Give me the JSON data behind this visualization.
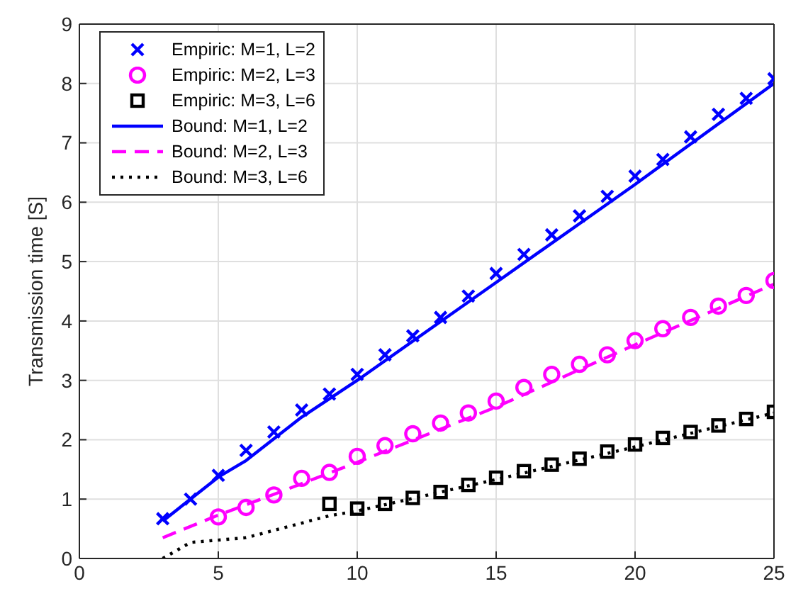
{
  "chart_data": {
    "type": "line",
    "ylabel": "Transmission time [S]",
    "xlim": [
      0,
      25
    ],
    "xticks": [
      0,
      5,
      10,
      15,
      20,
      25
    ],
    "ylim": [
      0,
      9
    ],
    "yticks": [
      0,
      1,
      2,
      3,
      4,
      5,
      6,
      7,
      8,
      9
    ],
    "grid": true,
    "legend": "top left",
    "series": [
      {
        "name": "Empiric: M=1, L=2",
        "type": "scatter",
        "marker": "cross",
        "color": "#0000ff",
        "x": [
          3,
          4,
          5,
          6,
          7,
          8,
          9,
          10,
          11,
          12,
          13,
          14,
          15,
          16,
          17,
          18,
          19,
          20,
          21,
          22,
          23,
          24,
          25
        ],
        "values": [
          0.67,
          1.0,
          1.4,
          1.82,
          2.13,
          2.5,
          2.77,
          3.1,
          3.43,
          3.75,
          4.06,
          4.42,
          4.8,
          5.12,
          5.45,
          5.77,
          6.1,
          6.44,
          6.72,
          7.1,
          7.48,
          7.75,
          8.08
        ]
      },
      {
        "name": "Empiric: M=2, L=3",
        "type": "scatter",
        "marker": "circle",
        "color": "#ff00ff",
        "x": [
          5,
          6,
          7,
          8,
          9,
          10,
          11,
          12,
          13,
          14,
          15,
          16,
          17,
          18,
          19,
          20,
          21,
          22,
          23,
          24,
          25
        ],
        "values": [
          0.7,
          0.86,
          1.07,
          1.35,
          1.45,
          1.72,
          1.9,
          2.1,
          2.28,
          2.45,
          2.65,
          2.88,
          3.1,
          3.27,
          3.43,
          3.67,
          3.87,
          4.06,
          4.25,
          4.43,
          4.68
        ]
      },
      {
        "name": "Empiric: M=3, L=6",
        "type": "scatter",
        "marker": "square",
        "color": "#000000",
        "x": [
          9,
          10,
          11,
          12,
          13,
          14,
          15,
          16,
          17,
          18,
          19,
          20,
          21,
          22,
          23,
          24,
          25
        ],
        "values": [
          0.92,
          0.84,
          0.92,
          1.02,
          1.12,
          1.24,
          1.36,
          1.47,
          1.58,
          1.68,
          1.8,
          1.92,
          2.03,
          2.13,
          2.24,
          2.35,
          2.47
        ]
      },
      {
        "name": "Bound: M=1, L=2",
        "line_style": "solid",
        "color": "#0000ff",
        "x": [
          3,
          5,
          6,
          8,
          10,
          15,
          20,
          25
        ],
        "values": [
          0.63,
          1.37,
          1.65,
          2.38,
          3.0,
          4.65,
          6.3,
          8.0
        ]
      },
      {
        "name": "Bound: M=2, L=3",
        "line_style": "dashed",
        "color": "#ff00ff",
        "x": [
          3,
          5,
          7,
          10,
          15,
          20,
          25
        ],
        "values": [
          0.35,
          0.73,
          1.08,
          1.62,
          2.55,
          3.6,
          4.62
        ]
      },
      {
        "name": "Bound: M=3, L=6",
        "line_style": "dotted",
        "color": "#000000",
        "x": [
          3,
          4,
          6,
          9,
          10,
          15,
          20,
          25
        ],
        "values": [
          0.0,
          0.27,
          0.35,
          0.72,
          0.8,
          1.33,
          1.88,
          2.45
        ]
      }
    ]
  }
}
